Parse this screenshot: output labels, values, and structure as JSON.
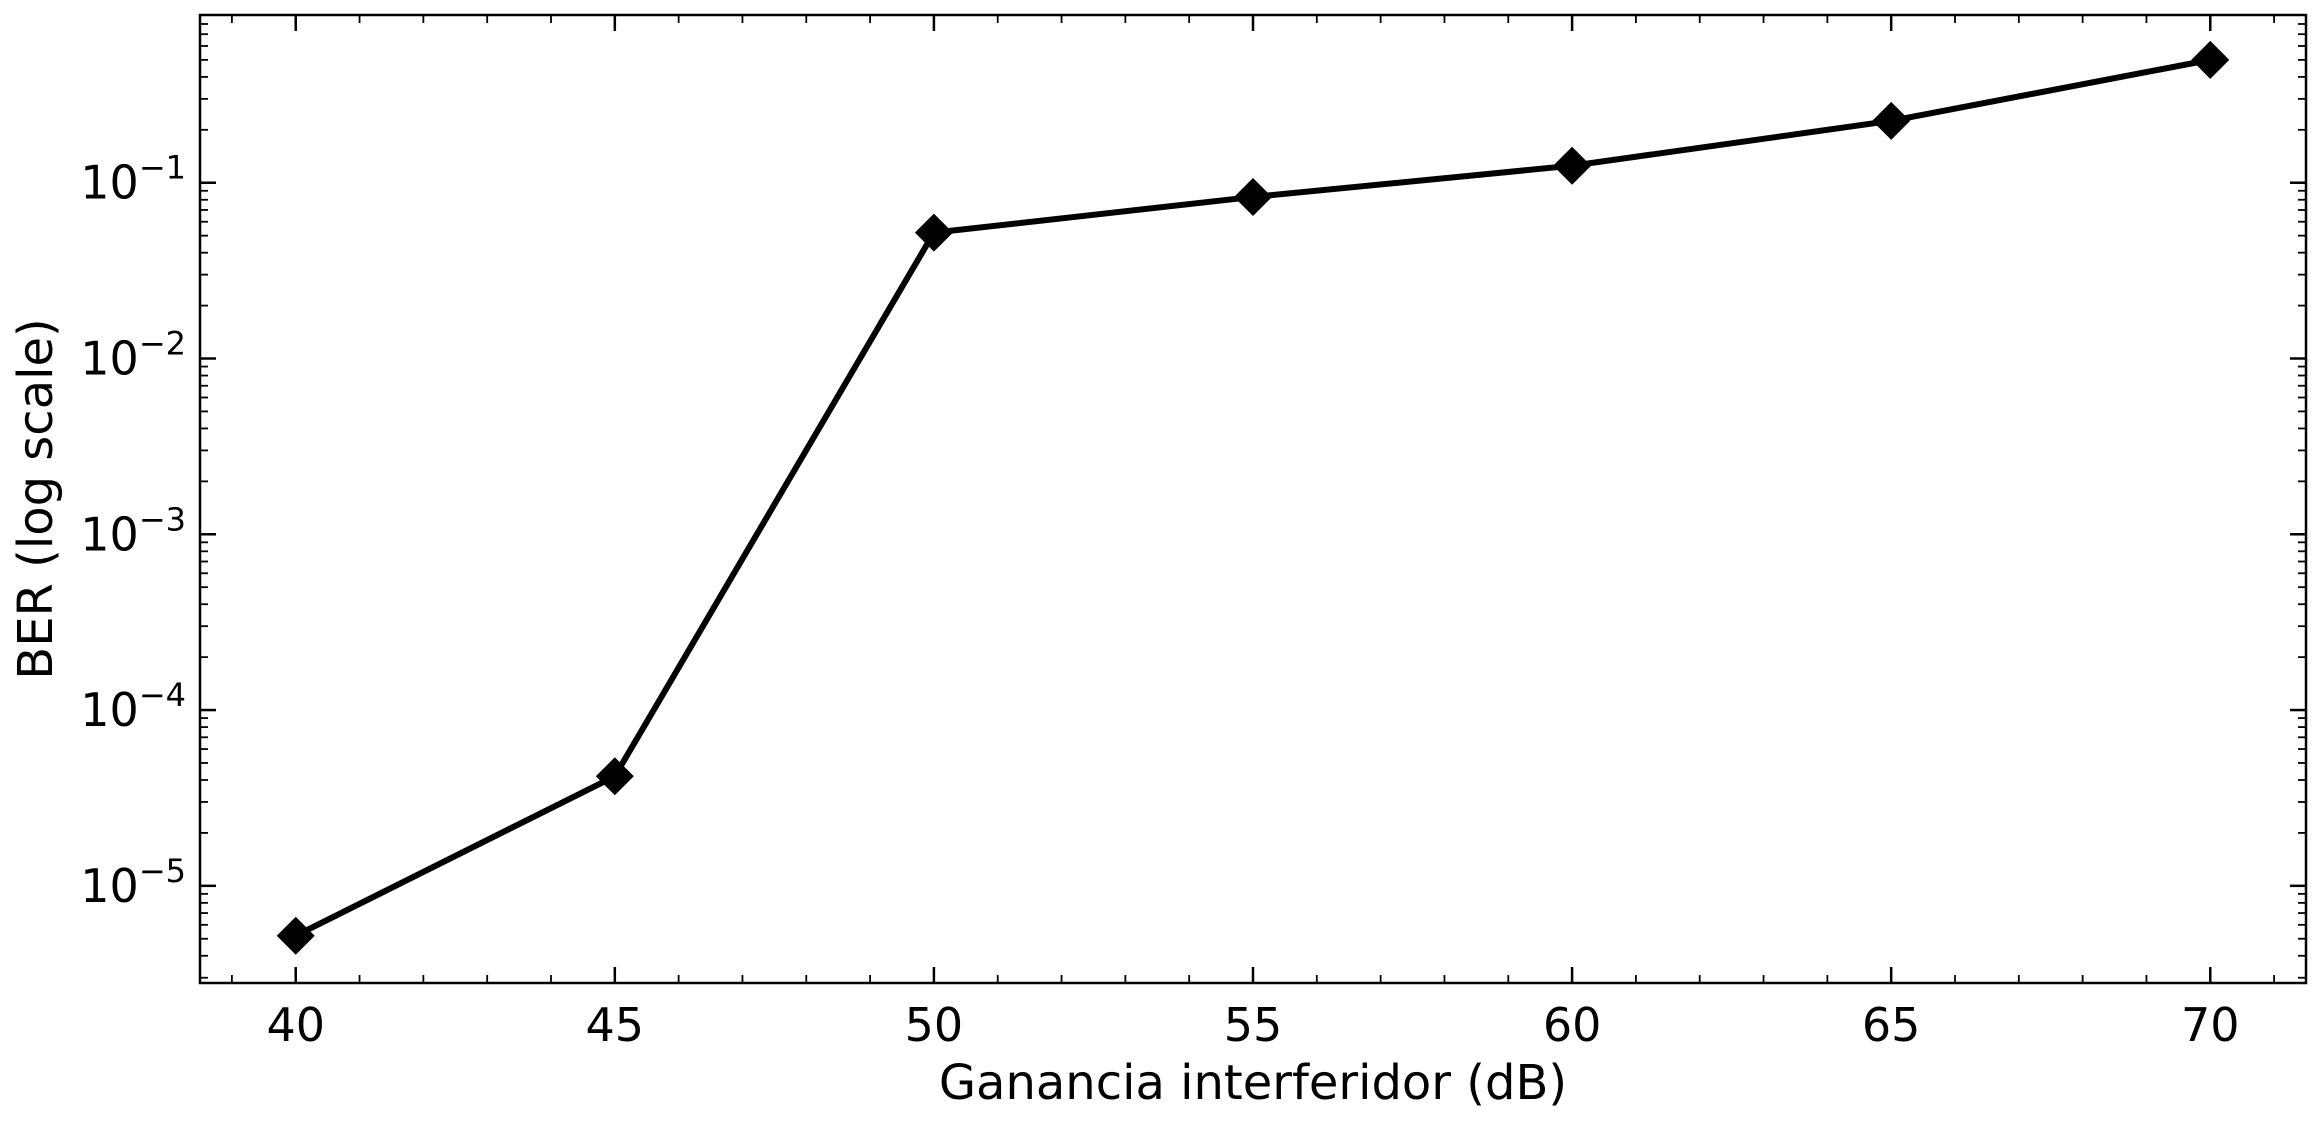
{
  "chart_data": {
    "type": "line",
    "title": "",
    "xlabel": "Ganancia interferidor (dB)",
    "ylabel": "BER (log scale)",
    "x_scale": "linear",
    "y_scale": "log",
    "xlim": [
      38.5,
      71.5
    ],
    "ylim": [
      2.8e-06,
      0.9
    ],
    "grid": false,
    "legend": "none",
    "x_ticks": [
      40,
      45,
      50,
      55,
      60,
      65,
      70
    ],
    "x_tick_labels": [
      "40",
      "45",
      "50",
      "55",
      "60",
      "65",
      "70"
    ],
    "y_ticks": [
      1e-05,
      0.0001,
      0.001,
      0.01,
      0.1
    ],
    "y_tick_labels": [
      {
        "base": "10",
        "exp": "−5"
      },
      {
        "base": "10",
        "exp": "−4"
      },
      {
        "base": "10",
        "exp": "−3"
      },
      {
        "base": "10",
        "exp": "−2"
      },
      {
        "base": "10",
        "exp": "−1"
      }
    ],
    "series": [
      {
        "marker": "diamond",
        "color": "#000000",
        "x": [
          40,
          45,
          50,
          55,
          60,
          65,
          70
        ],
        "y": [
          5.2e-06,
          4.2e-05,
          0.052,
          0.083,
          0.125,
          0.225,
          0.5
        ]
      }
    ]
  }
}
